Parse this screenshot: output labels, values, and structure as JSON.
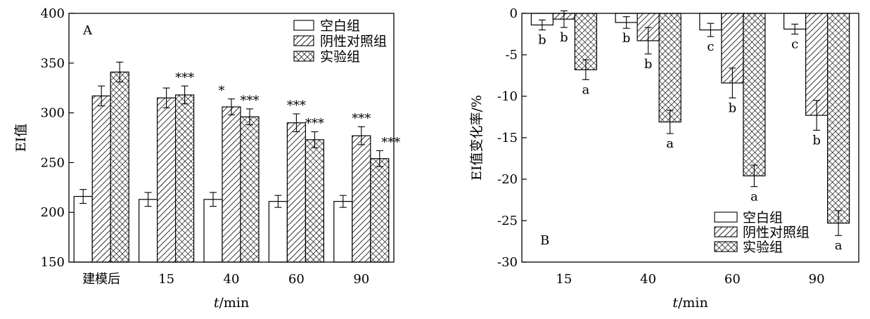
{
  "colors": {
    "ink": "#000000",
    "paper": "#ffffff"
  },
  "chart_data": [
    {
      "panel": "A",
      "type": "bar",
      "xlabel_italic": "t",
      "xlabel_rest": "/min",
      "ylabel": "EI值",
      "ylim": [
        150,
        400
      ],
      "yticks": [
        150,
        200,
        250,
        300,
        350,
        400
      ],
      "grid": false,
      "legend_position": "top-right",
      "categories": [
        "建模后",
        "15",
        "40",
        "60",
        "90"
      ],
      "series": [
        {
          "name": "空白组",
          "pattern": "none",
          "values": [
            216,
            213,
            213,
            211,
            211
          ],
          "errors": [
            7,
            7,
            7,
            6,
            6
          ],
          "annotations": [
            "",
            "",
            "",
            "",
            ""
          ]
        },
        {
          "name": "阴性对照组",
          "pattern": "hatch",
          "values": [
            317,
            315,
            306,
            290,
            277
          ],
          "errors": [
            10,
            10,
            8,
            9,
            9
          ],
          "annotations": [
            "",
            "",
            "*",
            "***",
            "***"
          ]
        },
        {
          "name": "实验组",
          "pattern": "crosshatch",
          "values": [
            341,
            318,
            296,
            273,
            254
          ],
          "errors": [
            10,
            9,
            8,
            8,
            8
          ],
          "annotations": [
            "",
            "***",
            "***",
            "***",
            "***"
          ]
        }
      ]
    },
    {
      "panel": "B",
      "type": "bar",
      "xlabel_italic": "t",
      "xlabel_rest": "/min",
      "ylabel": "EI值变化率/%",
      "ylim": [
        -30,
        0
      ],
      "yticks": [
        -30,
        -25,
        -20,
        -15,
        -10,
        -5,
        0
      ],
      "grid": false,
      "legend_position": "bottom-right",
      "categories": [
        "15",
        "40",
        "60",
        "90"
      ],
      "series": [
        {
          "name": "空白组",
          "pattern": "none",
          "values": [
            -1.4,
            -1.1,
            -2.0,
            -1.9
          ],
          "errors": [
            0.6,
            0.7,
            0.8,
            0.6
          ],
          "annotations": [
            "b",
            "b",
            "c",
            "c"
          ]
        },
        {
          "name": "阴性对照组",
          "pattern": "hatch",
          "values": [
            -0.7,
            -3.3,
            -8.4,
            -12.3
          ],
          "errors": [
            1.0,
            1.6,
            1.8,
            1.8
          ],
          "annotations": [
            "b",
            "b",
            "b",
            "b"
          ]
        },
        {
          "name": "实验组",
          "pattern": "crosshatch",
          "values": [
            -6.8,
            -13.1,
            -19.6,
            -25.3
          ],
          "errors": [
            1.2,
            1.4,
            1.3,
            1.5
          ],
          "annotations": [
            "a",
            "a",
            "a",
            "a"
          ]
        }
      ]
    }
  ]
}
